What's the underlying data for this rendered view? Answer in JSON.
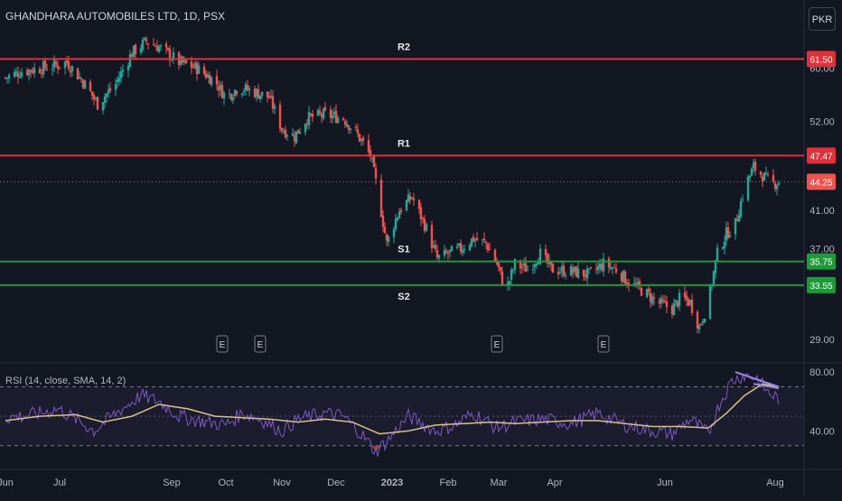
{
  "header": {
    "symbol_title": "GHANDHARA AUTOMOBILES LTD, 1D, PSX",
    "currency_button": "PKR"
  },
  "rsi_panel": {
    "title": "RSI (14, close, SMA, 14, 2)"
  },
  "colors": {
    "background": "#131722",
    "up_candle": "#26a69a",
    "down_candle": "#ef5350",
    "resistance": "#e0303a",
    "support": "#1f9a3a",
    "rsi_line": "#7e57c2",
    "rsi_sma": "#d6c28a"
  },
  "chart_data": [
    {
      "type": "candlestick",
      "title": "GHANDHARA AUTOMOBILES LTD, 1D, PSX",
      "x_ticks": [
        "Jun",
        "Jul",
        "Sep",
        "Oct",
        "Nov",
        "Dec",
        "2023",
        "Feb",
        "Mar",
        "Apr",
        "Jun",
        "Aug"
      ],
      "y_ticks": [
        29.0,
        37.0,
        41.0,
        52.0,
        60.0
      ],
      "y_scale": "log",
      "ylim": [
        27.5,
        67
      ],
      "levels": [
        {
          "label": "R2",
          "value": 61.5,
          "tag": "61.50",
          "kind": "resistance"
        },
        {
          "label": "R1",
          "value": 47.47,
          "tag": "47.47",
          "kind": "resistance"
        },
        {
          "label": "S1",
          "value": 35.75,
          "tag": "35.75",
          "kind": "support"
        },
        {
          "label": "S2",
          "value": 33.55,
          "tag": "33.55",
          "kind": "support"
        }
      ],
      "last_price": {
        "value": 44.25,
        "tag": "44.25"
      },
      "earnings_markers": [
        "E",
        "E",
        "E",
        "E"
      ],
      "close_path": [
        [
          "2022-06-01",
          58.5
        ],
        [
          "2022-06-10",
          59.5
        ],
        [
          "2022-06-20",
          60.0
        ],
        [
          "2022-06-30",
          60.5
        ],
        [
          "2022-07-05",
          61.0
        ],
        [
          "2022-07-15",
          57.5
        ],
        [
          "2022-07-22",
          54.5
        ],
        [
          "2022-08-01",
          57.5
        ],
        [
          "2022-08-10",
          62.5
        ],
        [
          "2022-08-18",
          64.5
        ],
        [
          "2022-08-25",
          63.5
        ],
        [
          "2022-09-05",
          61.0
        ],
        [
          "2022-09-15",
          60.0
        ],
        [
          "2022-09-25",
          58.0
        ],
        [
          "2022-10-01",
          55.5
        ],
        [
          "2022-10-08",
          57.0
        ],
        [
          "2022-10-15",
          56.5
        ],
        [
          "2022-10-25",
          55.5
        ],
        [
          "2022-11-01",
          51.0
        ],
        [
          "2022-11-08",
          50.0
        ],
        [
          "2022-11-15",
          52.5
        ],
        [
          "2022-11-25",
          53.0
        ],
        [
          "2022-12-05",
          52.5
        ],
        [
          "2022-12-12",
          50.5
        ],
        [
          "2022-12-20",
          47.5
        ],
        [
          "2022-12-25",
          42.0
        ],
        [
          "2022-12-29",
          37.5
        ],
        [
          "2023-01-05",
          41.0
        ],
        [
          "2023-01-12",
          42.5
        ],
        [
          "2023-01-20",
          39.0
        ],
        [
          "2023-01-26",
          36.0
        ],
        [
          "2023-02-01",
          36.5
        ],
        [
          "2023-02-08",
          37.0
        ],
        [
          "2023-02-15",
          38.0
        ],
        [
          "2023-02-22",
          37.5
        ],
        [
          "2023-02-28",
          35.5
        ],
        [
          "2023-03-05",
          33.0
        ],
        [
          "2023-03-10",
          35.5
        ],
        [
          "2023-03-17",
          35.0
        ],
        [
          "2023-03-24",
          36.5
        ],
        [
          "2023-03-30",
          35.0
        ],
        [
          "2023-04-10",
          34.8
        ],
        [
          "2023-04-20",
          34.5
        ],
        [
          "2023-04-28",
          35.5
        ],
        [
          "2023-05-05",
          35.0
        ],
        [
          "2023-05-12",
          33.8
        ],
        [
          "2023-05-20",
          33.0
        ],
        [
          "2023-05-28",
          32.0
        ],
        [
          "2023-06-05",
          31.5
        ],
        [
          "2023-06-10",
          32.5
        ],
        [
          "2023-06-15",
          32.0
        ],
        [
          "2023-06-20",
          30.0
        ],
        [
          "2023-06-25",
          32.0
        ],
        [
          "2023-06-30",
          36.5
        ],
        [
          "2023-07-05",
          38.5
        ],
        [
          "2023-07-10",
          39.5
        ],
        [
          "2023-07-15",
          43.5
        ],
        [
          "2023-07-20",
          46.0
        ],
        [
          "2023-07-25",
          45.0
        ],
        [
          "2023-07-30",
          44.0
        ],
        [
          "2023-08-03",
          44.25
        ]
      ]
    },
    {
      "type": "line",
      "title": "RSI (14, close, SMA, 14, 2)",
      "y_ticks": [
        40.0,
        80.0
      ],
      "ylim": [
        20,
        85
      ],
      "bands": [
        70,
        50,
        30
      ],
      "series": [
        {
          "values": [
            [
              "2022-06-01",
              49
            ],
            [
              "2022-06-10",
              50
            ],
            [
              "2022-06-20",
              52
            ],
            [
              "2022-06-30",
              55
            ],
            [
              "2022-07-10",
              48
            ],
            [
              "2022-07-20",
              40
            ],
            [
              "2022-08-01",
              52
            ],
            [
              "2022-08-15",
              64
            ],
            [
              "2022-08-25",
              60
            ],
            [
              "2022-09-05",
              50
            ],
            [
              "2022-09-20",
              46
            ],
            [
              "2022-10-01",
              44
            ],
            [
              "2022-10-10",
              52
            ],
            [
              "2022-10-20",
              48
            ],
            [
              "2022-11-01",
              40
            ],
            [
              "2022-11-10",
              48
            ],
            [
              "2022-11-25",
              52
            ],
            [
              "2022-12-05",
              50
            ],
            [
              "2022-12-15",
              38
            ],
            [
              "2022-12-23",
              26
            ],
            [
              "2022-12-30",
              34
            ],
            [
              "2023-01-10",
              50
            ],
            [
              "2023-01-25",
              40
            ],
            [
              "2023-02-05",
              44
            ],
            [
              "2023-02-15",
              52
            ],
            [
              "2023-02-28",
              42
            ],
            [
              "2023-03-10",
              46
            ],
            [
              "2023-03-25",
              48
            ],
            [
              "2023-04-10",
              45
            ],
            [
              "2023-04-25",
              52
            ],
            [
              "2023-05-10",
              44
            ],
            [
              "2023-05-25",
              40
            ],
            [
              "2023-06-05",
              38
            ],
            [
              "2023-06-15",
              48
            ],
            [
              "2023-06-25",
              38
            ],
            [
              "2023-07-01",
              58
            ],
            [
              "2023-07-08",
              74
            ],
            [
              "2023-07-15",
              78
            ],
            [
              "2023-07-22",
              76
            ],
            [
              "2023-07-28",
              66
            ],
            [
              "2023-08-03",
              62
            ]
          ]
        },
        {
          "values": [
            [
              "2022-06-01",
              47
            ],
            [
              "2022-06-20",
              50
            ],
            [
              "2022-07-10",
              51
            ],
            [
              "2022-07-25",
              46
            ],
            [
              "2022-08-10",
              50
            ],
            [
              "2022-08-25",
              58
            ],
            [
              "2022-09-10",
              55
            ],
            [
              "2022-09-25",
              50
            ],
            [
              "2022-10-10",
              49
            ],
            [
              "2022-10-25",
              48
            ],
            [
              "2022-11-10",
              46
            ],
            [
              "2022-11-25",
              48
            ],
            [
              "2022-12-10",
              46
            ],
            [
              "2022-12-25",
              38
            ],
            [
              "2023-01-10",
              40
            ],
            [
              "2023-01-25",
              44
            ],
            [
              "2023-02-10",
              45
            ],
            [
              "2023-02-25",
              46
            ],
            [
              "2023-03-10",
              45
            ],
            [
              "2023-03-25",
              46
            ],
            [
              "2023-04-10",
              47
            ],
            [
              "2023-04-25",
              47
            ],
            [
              "2023-05-10",
              45
            ],
            [
              "2023-05-25",
              43
            ],
            [
              "2023-06-10",
              43
            ],
            [
              "2023-06-25",
              42
            ],
            [
              "2023-07-05",
              52
            ],
            [
              "2023-07-15",
              64
            ],
            [
              "2023-07-25",
              72
            ],
            [
              "2023-08-03",
              70
            ]
          ]
        }
      ],
      "divergence_lines": [
        [
          [
            "2023-07-10",
            80
          ],
          [
            "2023-08-03",
            70
          ]
        ],
        [
          [
            "2023-07-20",
            72
          ],
          [
            "2023-08-03",
            69
          ]
        ]
      ]
    }
  ]
}
